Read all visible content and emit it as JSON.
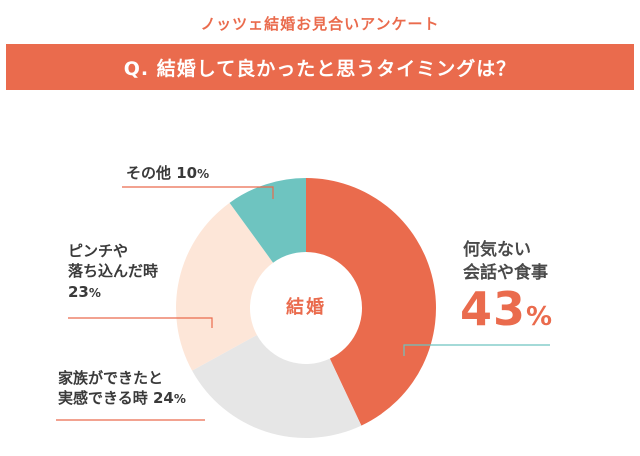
{
  "header": {
    "survey_title": "ノッツェ結婚お見合いアンケート",
    "question": "Q. 結婚して良かったと思うタイミングは？"
  },
  "colors": {
    "accent": "#ea6b4d",
    "teal": "#6ec4c0",
    "peach": "#fde6d8",
    "gray": "#e6e6e6"
  },
  "chart_data": {
    "type": "pie",
    "center_label": "結婚",
    "slices": [
      {
        "label": "何気ない会話や食事",
        "label_lines": [
          "何気ない",
          "会話や食事"
        ],
        "value": 43,
        "color": "#ea6b4d"
      },
      {
        "label": "家族ができたと実感できる時",
        "label_lines": [
          "家族ができたと",
          "実感できる時"
        ],
        "value": 24,
        "color": "#e6e6e6"
      },
      {
        "label": "ピンチや落ち込んだ時",
        "label_lines": [
          "ピンチや",
          "落ち込んだ時"
        ],
        "value": 23,
        "color": "#fde6d8"
      },
      {
        "label": "その他",
        "label_lines": [
          "その他"
        ],
        "value": 10,
        "color": "#6ec4c0"
      }
    ],
    "unit": "%"
  }
}
